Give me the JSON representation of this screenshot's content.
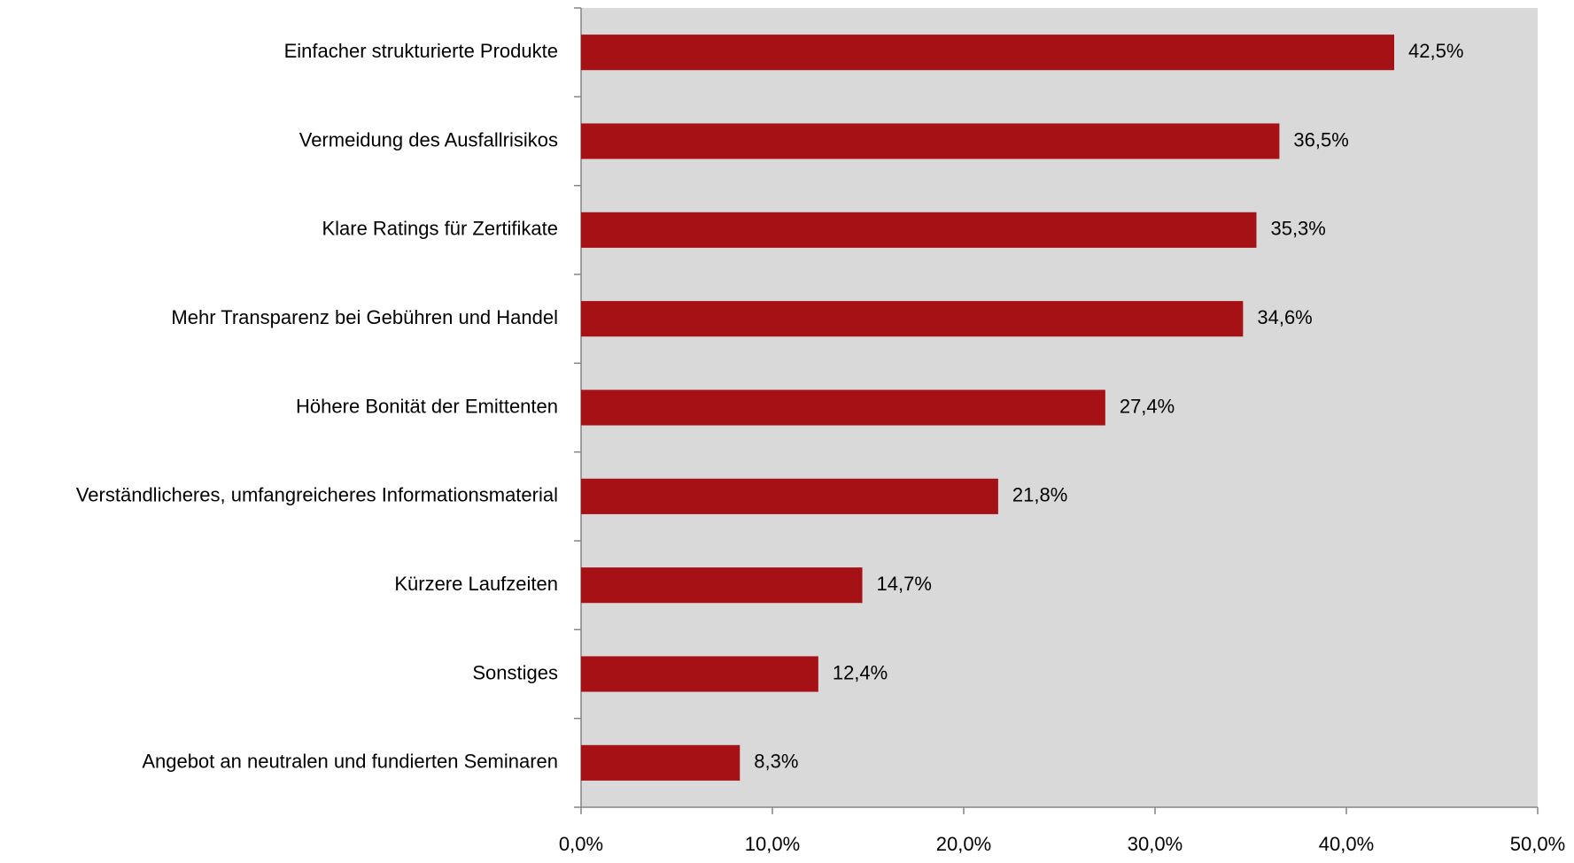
{
  "chart_data": {
    "type": "bar",
    "orientation": "horizontal",
    "categories": [
      "Einfacher strukturierte Produkte",
      "Vermeidung des Ausfallrisikos",
      "Klare Ratings für Zertifikate",
      "Mehr Transparenz bei Gebühren und Handel",
      "Höhere Bonität der Emittenten",
      "Verständlicheres, umfangreicheres Informationsmaterial",
      "Kürzere Laufzeiten",
      "Sonstiges",
      "Angebot an neutralen und fundierten Seminaren"
    ],
    "values": [
      42.5,
      36.5,
      35.3,
      34.6,
      27.4,
      21.8,
      14.7,
      12.4,
      8.3
    ],
    "value_labels": [
      "42,5%",
      "36,5%",
      "35,3%",
      "34,6%",
      "27,4%",
      "21,8%",
      "14,7%",
      "12,4%",
      "8,3%"
    ],
    "color": "#a61116",
    "xlim": [
      0,
      50
    ],
    "xticks": [
      {
        "value": 0,
        "label": "0,0%"
      },
      {
        "value": 10,
        "label": "10,0%"
      },
      {
        "value": 20,
        "label": "20,0%"
      },
      {
        "value": 30,
        "label": "30,0%"
      },
      {
        "value": 40,
        "label": "40,0%"
      },
      {
        "value": 50,
        "label": "50,0%"
      }
    ]
  }
}
